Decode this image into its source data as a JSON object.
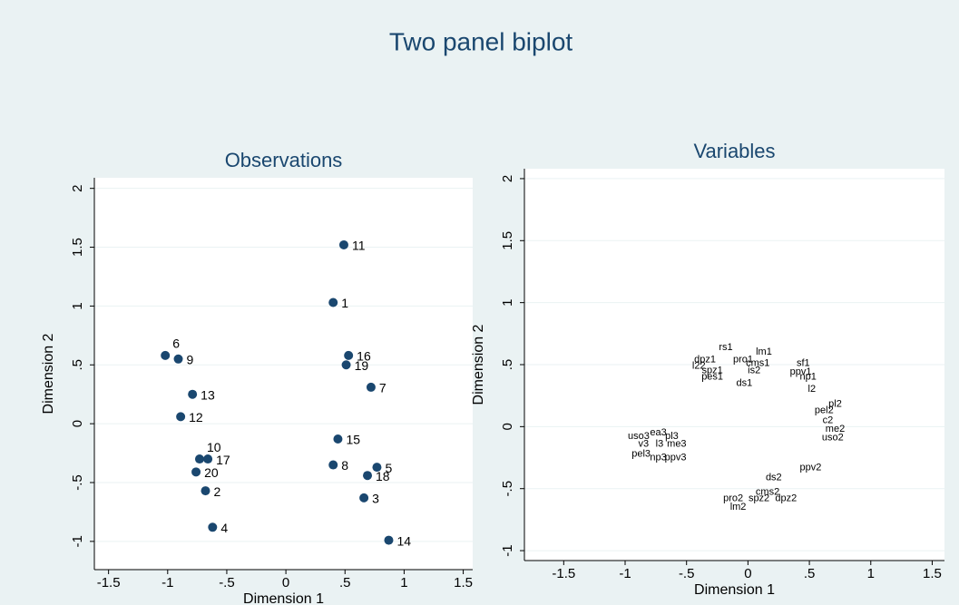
{
  "title": "Two panel biplot",
  "chart_data": [
    {
      "type": "scatter",
      "title": "Observations",
      "x_label": "Dimension 1",
      "y_label": "Dimension 2",
      "markers": true,
      "color": "#1a476f",
      "grid": true,
      "xlim": [
        -1.62,
        1.58
      ],
      "ylim": [
        -1.24,
        2.09
      ],
      "xticks": [
        -1.5,
        -1,
        {
          "value": -0.5,
          "label": "-.5"
        },
        0,
        {
          "value": 0.5,
          "label": ".5"
        },
        1,
        1.5
      ],
      "yticks": [
        -1,
        {
          "value": -0.5,
          "label": "-.5"
        },
        0,
        {
          "value": 0.5,
          "label": ".5"
        },
        1,
        1.5,
        2
      ],
      "labels": [
        "1",
        "2",
        "3",
        "4",
        "5",
        "6",
        "7",
        "8",
        "9",
        "10",
        "11",
        "12",
        "13",
        "14",
        "15",
        "16",
        "17",
        "18",
        "19",
        "20"
      ],
      "x": [
        0.4,
        -0.68,
        0.66,
        -0.62,
        0.77,
        -1.02,
        0.72,
        0.4,
        -0.91,
        -0.73,
        0.49,
        -0.89,
        -0.79,
        0.87,
        0.44,
        0.53,
        -0.66,
        0.69,
        0.51,
        -0.76
      ],
      "y": [
        1.03,
        -0.57,
        -0.63,
        -0.88,
        -0.37,
        0.58,
        0.31,
        -0.35,
        0.55,
        -0.3,
        1.52,
        0.06,
        0.25,
        -0.99,
        -0.13,
        0.58,
        -0.3,
        -0.44,
        0.5,
        -0.41
      ]
    },
    {
      "type": "scatter",
      "title": "Variables",
      "x_label": "Dimension 1",
      "y_label": "Dimension 2",
      "markers": false,
      "color": "#1a476f",
      "grid": true,
      "xlim": [
        -1.82,
        1.6
      ],
      "ylim": [
        -1.08,
        2.08
      ],
      "xticks": [
        -1.5,
        -1,
        {
          "value": -0.5,
          "label": "-.5"
        },
        0,
        {
          "value": 0.5,
          "label": ".5"
        },
        1,
        1.5
      ],
      "yticks": [
        -1,
        {
          "value": -0.5,
          "label": "-.5"
        },
        0,
        {
          "value": 0.5,
          "label": ".5"
        },
        1,
        1.5,
        2
      ],
      "labels": [
        "rs1",
        "lm1",
        "dpz1",
        "pro1",
        "sf1",
        "cms1",
        "l22",
        "ppv1",
        "spz1",
        "is2",
        "np1",
        "pes1",
        "ds1",
        "l2",
        "pl2",
        "pel2",
        "c2",
        "me2",
        "uso2",
        "uso3",
        "ea3",
        "pl3",
        "v3",
        "l3",
        "me3",
        "pel3",
        "np3",
        "ppv3",
        "ppv2",
        "ds2",
        "cms2",
        "pro2",
        "spz2",
        "dpz2",
        "lm2"
      ],
      "x": [
        -0.18,
        0.13,
        -0.35,
        -0.04,
        0.45,
        0.08,
        -0.4,
        0.43,
        -0.29,
        0.05,
        0.49,
        -0.29,
        -0.03,
        0.52,
        0.71,
        0.62,
        0.65,
        0.71,
        0.69,
        -0.89,
        -0.73,
        -0.62,
        -0.85,
        -0.72,
        -0.58,
        -0.87,
        -0.73,
        -0.59,
        0.51,
        0.21,
        0.16,
        -0.12,
        0.09,
        0.31,
        -0.08
      ],
      "y": [
        0.64,
        0.6,
        0.54,
        0.54,
        0.51,
        0.51,
        0.49,
        0.44,
        0.45,
        0.45,
        0.4,
        0.4,
        0.35,
        0.3,
        0.18,
        0.13,
        0.05,
        -0.02,
        -0.09,
        -0.08,
        -0.05,
        -0.08,
        -0.14,
        -0.14,
        -0.14,
        -0.22,
        -0.25,
        -0.25,
        -0.33,
        -0.41,
        -0.53,
        -0.58,
        -0.58,
        -0.58,
        -0.65
      ]
    }
  ]
}
